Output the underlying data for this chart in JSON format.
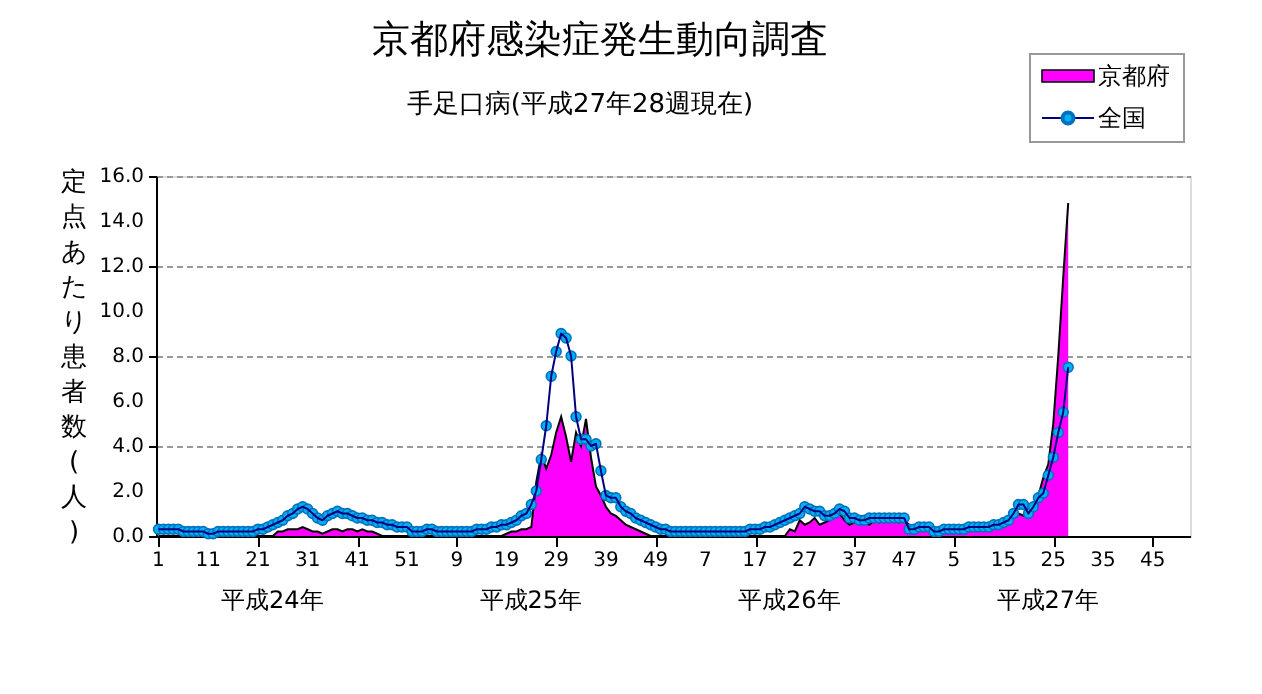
{
  "chart_data": {
    "type": "area",
    "title": "京都府感染症発生動向調査",
    "subtitle": "手足口病(平成27年28週現在)",
    "ylabel": "定点あたり患者数(人)",
    "annotations": [
      "平成24年",
      "平成25年",
      "平成26年",
      "平成27年"
    ],
    "categories": [
      "1",
      null,
      null,
      null,
      null,
      null,
      null,
      null,
      null,
      null,
      "11",
      null,
      null,
      null,
      null,
      null,
      null,
      null,
      null,
      null,
      "21",
      null,
      null,
      null,
      null,
      null,
      null,
      null,
      null,
      null,
      "31",
      null,
      null,
      null,
      null,
      null,
      null,
      null,
      null,
      null,
      "41",
      null,
      null,
      null,
      null,
      null,
      null,
      null,
      null,
      null,
      "51",
      null,
      null,
      null,
      null,
      null,
      null,
      null,
      null,
      null,
      "9",
      null,
      null,
      null,
      null,
      null,
      null,
      null,
      null,
      null,
      "19",
      null,
      null,
      null,
      null,
      null,
      null,
      null,
      null,
      null,
      "29",
      null,
      null,
      null,
      null,
      null,
      null,
      null,
      null,
      null,
      "39",
      null,
      null,
      null,
      null,
      null,
      null,
      null,
      null,
      null,
      "49",
      null,
      null,
      null,
      null,
      null,
      null,
      null,
      null,
      null,
      "7",
      null,
      null,
      null,
      null,
      null,
      null,
      null,
      null,
      null,
      "17",
      null,
      null,
      null,
      null,
      null,
      null,
      null,
      null,
      null,
      "27",
      null,
      null,
      null,
      null,
      null,
      null,
      null,
      null,
      null,
      "37",
      null,
      null,
      null,
      null,
      null,
      null,
      null,
      null,
      null,
      "47",
      null,
      null,
      null,
      null,
      null,
      null,
      null,
      null,
      null,
      "5",
      null,
      null,
      null,
      null,
      null,
      null,
      null,
      null,
      null,
      "15",
      null,
      null,
      null,
      null,
      null,
      null,
      null,
      null,
      null,
      "25",
      null,
      null,
      null,
      null,
      null,
      null,
      null,
      null,
      null,
      "35",
      null,
      null,
      null,
      null,
      null,
      null,
      null,
      null,
      null,
      "45",
      null,
      null,
      null,
      null,
      null,
      null,
      null
    ],
    "series": [
      {
        "name": "京都府",
        "color": "#ff00ff",
        "values": [
          0,
          0,
          0,
          0,
          0,
          0,
          0,
          0,
          0,
          0,
          0,
          0,
          0,
          0,
          0,
          0,
          0,
          0,
          0,
          0,
          0,
          0,
          0,
          0,
          0.2,
          0.2,
          0.3,
          0.3,
          0.3,
          0.4,
          0.3,
          0.2,
          0.2,
          0.1,
          0.2,
          0.3,
          0.3,
          0.2,
          0.3,
          0.3,
          0.2,
          0.3,
          0.2,
          0.2,
          0.1,
          0,
          0,
          0,
          0,
          0,
          0,
          0,
          0,
          0,
          0,
          0,
          0,
          0,
          0,
          0,
          0,
          0,
          0,
          0,
          0,
          0,
          0,
          0,
          0,
          0,
          0.1,
          0.2,
          0.2,
          0.3,
          0.3,
          0.4,
          2.4,
          3.6,
          3.0,
          3.6,
          4.6,
          5.3,
          4.4,
          3.3,
          4.6,
          4.0,
          5.2,
          3.5,
          2.2,
          1.8,
          1.3,
          1.0,
          0.9,
          0.7,
          0.5,
          0.4,
          0.3,
          0.2,
          0.1,
          0,
          0,
          0,
          0,
          0,
          0,
          0,
          0,
          0,
          0,
          0,
          0,
          0,
          0,
          0,
          0,
          0,
          0,
          0,
          0,
          0,
          0,
          0,
          0,
          0,
          0,
          0,
          0,
          0.3,
          0.2,
          0.7,
          0.5,
          0.6,
          0.8,
          0.5,
          0.6,
          0.7,
          0.9,
          1.0,
          0.7,
          0.5,
          0.6,
          0.8,
          0.6,
          0.5,
          0.7,
          0.6,
          0.7,
          0.7,
          0.8,
          0.6,
          0.7,
          0.5,
          0.3,
          0.4,
          0.3,
          0.4,
          0.3,
          0.2,
          0.2,
          0.3,
          0.3,
          0.3,
          0.3,
          0.3,
          0.3,
          0.4,
          0.4,
          0.4,
          0.4,
          0.4,
          0.5,
          0.6,
          0.8,
          1.0,
          0.9,
          1.2,
          1.4,
          1.8,
          2.6,
          3.2,
          5.0,
          8.0,
          11.5,
          14.8,
          null,
          null,
          null,
          null,
          null,
          null,
          null,
          null,
          null,
          null,
          null,
          null,
          null,
          null,
          null,
          null,
          null,
          null,
          null,
          null,
          null,
          null,
          null,
          null
        ]
      },
      {
        "name": "全国",
        "type": "line",
        "marker": "circle",
        "color": "#00b0f0",
        "values": [
          0.3,
          0.3,
          0.3,
          0.3,
          0.3,
          0.2,
          0.2,
          0.2,
          0.2,
          0.2,
          0.1,
          0.1,
          0.2,
          0.2,
          0.2,
          0.2,
          0.2,
          0.2,
          0.2,
          0.2,
          0.3,
          0.3,
          0.4,
          0.5,
          0.6,
          0.7,
          0.9,
          1.0,
          1.2,
          1.3,
          1.2,
          1.0,
          0.8,
          0.7,
          0.9,
          1.0,
          1.1,
          1.0,
          1.0,
          0.9,
          0.8,
          0.8,
          0.7,
          0.7,
          0.6,
          0.6,
          0.5,
          0.5,
          0.4,
          0.4,
          0.4,
          0.2,
          0.2,
          0.2,
          0.3,
          0.3,
          0.2,
          0.2,
          0.2,
          0.2,
          0.2,
          0.2,
          0.2,
          0.2,
          0.3,
          0.3,
          0.3,
          0.4,
          0.4,
          0.5,
          0.5,
          0.6,
          0.7,
          0.9,
          1.0,
          1.4,
          2.0,
          3.4,
          4.9,
          7.1,
          8.2,
          9.0,
          8.8,
          8.0,
          5.3,
          4.3,
          4.3,
          4.0,
          4.1,
          2.9,
          1.8,
          1.7,
          1.7,
          1.3,
          1.1,
          1.0,
          0.8,
          0.7,
          0.6,
          0.5,
          0.4,
          0.3,
          0.3,
          0.2,
          0.2,
          0.2,
          0.2,
          0.2,
          0.2,
          0.2,
          0.2,
          0.2,
          0.2,
          0.2,
          0.2,
          0.2,
          0.2,
          0.2,
          0.2,
          0.3,
          0.3,
          0.3,
          0.4,
          0.4,
          0.5,
          0.6,
          0.7,
          0.8,
          0.9,
          1.0,
          1.3,
          1.2,
          1.1,
          1.1,
          0.9,
          0.9,
          1.0,
          1.2,
          1.1,
          0.8,
          0.8,
          0.7,
          0.7,
          0.8,
          0.8,
          0.8,
          0.8,
          0.8,
          0.8,
          0.8,
          0.8,
          0.3,
          0.3,
          0.4,
          0.4,
          0.4,
          0.2,
          0.2,
          0.3,
          0.3,
          0.3,
          0.3,
          0.3,
          0.4,
          0.4,
          0.4,
          0.4,
          0.4,
          0.5,
          0.5,
          0.6,
          0.7,
          1.0,
          1.4,
          1.4,
          1.0,
          1.3,
          1.7,
          1.9,
          2.7,
          3.5,
          4.6,
          5.5,
          7.5,
          null,
          null,
          null,
          null,
          null,
          null,
          null,
          null,
          null,
          null,
          null,
          null,
          null,
          null,
          null,
          null,
          null,
          null,
          null,
          null,
          null,
          null,
          null,
          null
        ]
      }
    ],
    "ylim": [
      0,
      16
    ],
    "yticks": [
      {
        "value": 0,
        "label": "0.0"
      },
      {
        "value": 2,
        "label": "2.0"
      },
      {
        "value": 4,
        "label": "4.0"
      },
      {
        "value": 6,
        "label": "6.0"
      },
      {
        "value": 8,
        "label": "8.0"
      },
      {
        "value": 10,
        "label": "10.0"
      },
      {
        "value": 12,
        "label": "12.0"
      },
      {
        "value": 14,
        "label": "14.0"
      },
      {
        "value": 16,
        "label": "16.0"
      }
    ],
    "grid": "y",
    "legend": "top right"
  }
}
